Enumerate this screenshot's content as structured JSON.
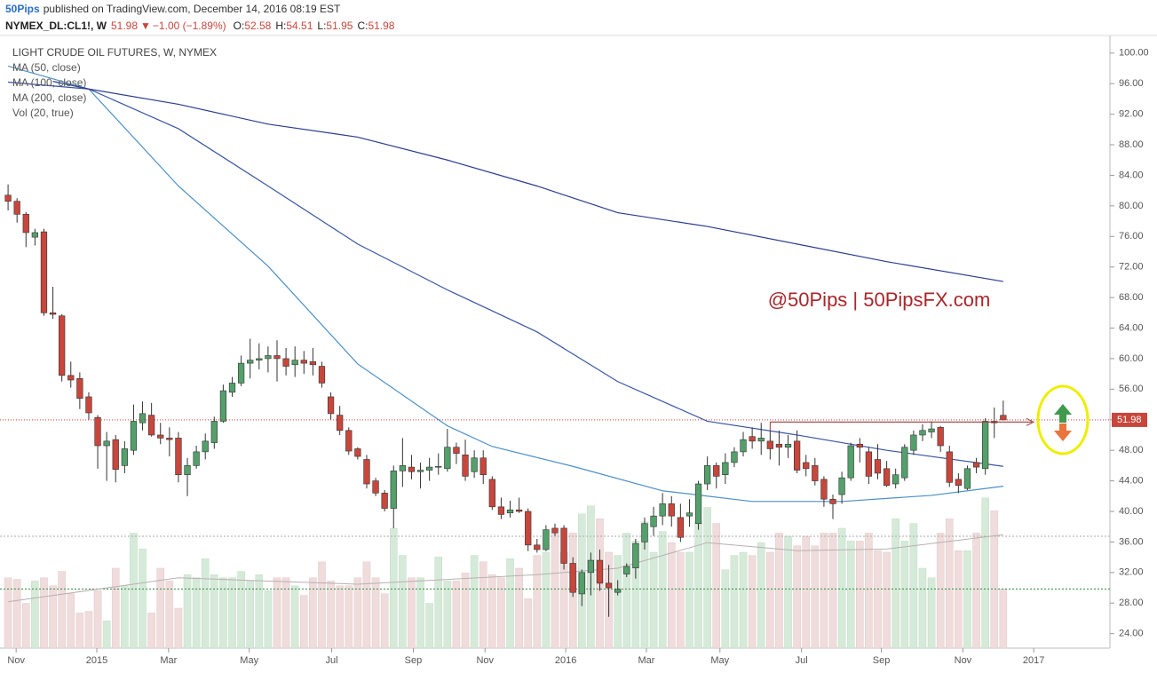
{
  "header": {
    "author": "50Pips",
    "published": "published on TradingView.com, December 14, 2016 08:19 EST",
    "symbol": "NYMEX_DL:CL1!, W",
    "last": "51.98",
    "change": "−1.00 (−1.89%)",
    "quote": [
      {
        "label": "O:",
        "value": "52.58"
      },
      {
        "label": "H:",
        "value": "54.51"
      },
      {
        "label": "L:",
        "value": "51.95"
      },
      {
        "label": "C:",
        "value": "51.98"
      }
    ]
  },
  "chart_data": {
    "type": "candlestick",
    "title": "LIGHT CRUDE OIL FUTURES, W, NYMEX",
    "watermark": "@50Pips | 50PipsFX.com",
    "indicator_labels": [
      "Vol (20, true)"
    ],
    "xlim": [
      -0.9,
      122.9
    ],
    "ylim": [
      22.1,
      102.3
    ],
    "vlim": [
      0,
      100
    ],
    "xticks": [
      {
        "value": 0.9,
        "label": "Nov"
      },
      {
        "value": 9.9,
        "label": "2015"
      },
      {
        "value": 17.9,
        "label": "Mar"
      },
      {
        "value": 26.9,
        "label": "May"
      },
      {
        "value": 36.1,
        "label": "Jul"
      },
      {
        "value": 45.2,
        "label": "Sep"
      },
      {
        "value": 53.2,
        "label": "Nov"
      },
      {
        "value": 62.2,
        "label": "2016"
      },
      {
        "value": 71.2,
        "label": "Mar"
      },
      {
        "value": 79.4,
        "label": "May"
      },
      {
        "value": 88.5,
        "label": "Jul"
      },
      {
        "value": 97.4,
        "label": "Sep"
      },
      {
        "value": 106.5,
        "label": "Nov"
      },
      {
        "value": 114.4,
        "label": "2017"
      }
    ],
    "yticks": [
      {
        "value": 24,
        "label": "24.00"
      },
      {
        "value": 28,
        "label": "28.00"
      },
      {
        "value": 32,
        "label": "32.00"
      },
      {
        "value": 36,
        "label": "36.00"
      },
      {
        "value": 40,
        "label": "40.00"
      },
      {
        "value": 44,
        "label": "44.00"
      },
      {
        "value": 48,
        "label": "48.00"
      },
      {
        "value": 52,
        "label": "52.00"
      },
      {
        "value": 56,
        "label": "56.00"
      },
      {
        "value": 60,
        "label": "60.00"
      },
      {
        "value": 64,
        "label": "64.00"
      },
      {
        "value": 68,
        "label": "68.00"
      },
      {
        "value": 72,
        "label": "72.00"
      },
      {
        "value": 76,
        "label": "76.00"
      },
      {
        "value": 80,
        "label": "80.00"
      },
      {
        "value": 84,
        "label": "84.00"
      },
      {
        "value": 88,
        "label": "88.00"
      },
      {
        "value": 92,
        "label": "92.00"
      },
      {
        "value": 96,
        "label": "96.00"
      },
      {
        "value": 100,
        "label": "100.00"
      }
    ],
    "up_color": "#53a06b",
    "down_color": "#c8463c",
    "vol_up_color": "#d6ead9",
    "vol_down_color": "#f0dcdc",
    "last_price": 51.98,
    "resistance_level": 51.7,
    "volume_levels": [
      37,
      70
    ],
    "ohlc": [
      [
        81.4,
        82.8,
        79.4,
        80.6
      ],
      [
        80.6,
        81.0,
        77.8,
        78.9
      ],
      [
        78.9,
        79.2,
        74.6,
        76.5
      ],
      [
        75.9,
        77.0,
        74.8,
        76.5
      ],
      [
        76.6,
        77.0,
        65.6,
        66.0
      ],
      [
        66.0,
        69.4,
        65.2,
        65.8
      ],
      [
        65.6,
        65.8,
        57.0,
        57.8
      ],
      [
        57.8,
        59.6,
        56.2,
        57.2
      ],
      [
        57.4,
        58.2,
        53.4,
        54.8
      ],
      [
        55.0,
        55.6,
        52.0,
        52.9
      ],
      [
        52.3,
        52.6,
        45.6,
        48.6
      ],
      [
        48.6,
        50.4,
        44.0,
        49.2
      ],
      [
        49.4,
        50.0,
        43.8,
        45.5
      ],
      [
        46.0,
        49.2,
        45.0,
        48.2
      ],
      [
        48.0,
        54.0,
        47.4,
        51.8
      ],
      [
        51.6,
        54.4,
        50.6,
        52.8
      ],
      [
        52.6,
        54.2,
        49.8,
        50.0
      ],
      [
        50.0,
        51.6,
        48.8,
        49.6
      ],
      [
        49.6,
        51.0,
        47.2,
        49.4
      ],
      [
        49.6,
        50.4,
        43.8,
        44.8
      ],
      [
        44.8,
        47.0,
        42.0,
        46.0
      ],
      [
        46.0,
        48.6,
        45.6,
        47.8
      ],
      [
        47.8,
        50.2,
        46.8,
        49.2
      ],
      [
        49.0,
        52.4,
        48.2,
        51.8
      ],
      [
        51.8,
        56.6,
        51.6,
        55.8
      ],
      [
        55.6,
        57.6,
        55.0,
        56.8
      ],
      [
        56.8,
        60.4,
        56.4,
        59.4
      ],
      [
        59.4,
        62.6,
        57.4,
        59.8
      ],
      [
        59.8,
        62.0,
        58.6,
        60.0
      ],
      [
        60.0,
        61.6,
        58.2,
        60.4
      ],
      [
        60.4,
        62.4,
        57.0,
        60.0
      ],
      [
        60.0,
        61.4,
        57.8,
        59.0
      ],
      [
        59.2,
        61.6,
        57.6,
        59.8
      ],
      [
        59.8,
        61.0,
        58.0,
        59.4
      ],
      [
        59.6,
        61.4,
        57.8,
        59.2
      ],
      [
        59.0,
        59.6,
        56.2,
        56.8
      ],
      [
        55.0,
        55.6,
        52.0,
        52.8
      ],
      [
        52.6,
        53.8,
        50.0,
        50.6
      ],
      [
        50.6,
        51.0,
        47.4,
        47.9
      ],
      [
        48.2,
        48.4,
        46.8,
        47.2
      ],
      [
        46.8,
        47.4,
        43.0,
        43.6
      ],
      [
        44.0,
        44.4,
        42.0,
        42.4
      ],
      [
        42.4,
        42.8,
        40.0,
        40.4
      ],
      [
        40.4,
        46.0,
        37.8,
        45.3
      ],
      [
        45.3,
        49.6,
        43.2,
        46.0
      ],
      [
        45.8,
        47.4,
        44.2,
        45.2
      ],
      [
        45.2,
        46.4,
        43.0,
        45.4
      ],
      [
        45.4,
        47.0,
        44.0,
        45.8
      ],
      [
        45.8,
        47.6,
        44.8,
        45.9
      ],
      [
        45.6,
        50.8,
        45.2,
        48.4
      ],
      [
        48.4,
        49.0,
        46.2,
        47.6
      ],
      [
        47.4,
        49.4,
        44.0,
        44.6
      ],
      [
        45.2,
        48.0,
        44.4,
        47.0
      ],
      [
        47.0,
        48.0,
        43.6,
        44.8
      ],
      [
        44.2,
        44.6,
        40.2,
        40.6
      ],
      [
        40.6,
        41.8,
        39.0,
        39.6
      ],
      [
        39.8,
        41.4,
        39.2,
        40.2
      ],
      [
        40.2,
        41.8,
        39.8,
        40.0
      ],
      [
        40.0,
        40.4,
        34.8,
        35.6
      ],
      [
        35.6,
        36.4,
        34.6,
        35.0
      ],
      [
        35.0,
        38.2,
        34.8,
        37.6
      ],
      [
        37.8,
        38.4,
        36.8,
        37.2
      ],
      [
        37.8,
        38.2,
        32.4,
        33.2
      ],
      [
        33.2,
        34.0,
        28.8,
        29.4
      ],
      [
        29.2,
        32.4,
        27.6,
        32.0
      ],
      [
        32.0,
        34.6,
        29.0,
        33.6
      ],
      [
        33.6,
        35.0,
        29.6,
        30.6
      ],
      [
        30.6,
        33.0,
        26.2,
        30.0
      ],
      [
        29.4,
        31.0,
        29.0,
        29.8
      ],
      [
        31.8,
        33.2,
        31.4,
        32.8
      ],
      [
        32.6,
        36.4,
        31.2,
        35.8
      ],
      [
        36.0,
        39.2,
        35.0,
        38.4
      ],
      [
        38.0,
        40.6,
        36.8,
        39.4
      ],
      [
        39.4,
        42.4,
        38.2,
        41.0
      ],
      [
        41.0,
        42.0,
        38.0,
        39.4
      ],
      [
        39.2,
        41.0,
        36.0,
        36.6
      ],
      [
        39.4,
        41.6,
        38.0,
        39.8
      ],
      [
        38.4,
        44.0,
        37.6,
        43.6
      ],
      [
        43.6,
        47.2,
        42.8,
        46.0
      ],
      [
        46.0,
        46.4,
        43.0,
        44.6
      ],
      [
        44.8,
        47.6,
        43.6,
        46.4
      ],
      [
        46.4,
        48.4,
        45.8,
        47.8
      ],
      [
        47.8,
        50.4,
        47.2,
        49.4
      ],
      [
        49.8,
        51.0,
        48.2,
        49.2
      ],
      [
        49.2,
        51.6,
        47.4,
        49.6
      ],
      [
        49.2,
        50.6,
        46.8,
        48.2
      ],
      [
        48.8,
        50.6,
        46.0,
        48.4
      ],
      [
        48.4,
        50.0,
        47.0,
        48.8
      ],
      [
        49.2,
        50.6,
        45.0,
        45.4
      ],
      [
        46.4,
        47.4,
        44.6,
        45.6
      ],
      [
        46.0,
        47.0,
        43.4,
        44.0
      ],
      [
        44.2,
        44.6,
        40.6,
        41.6
      ],
      [
        41.6,
        42.2,
        39.0,
        41.0
      ],
      [
        42.2,
        45.2,
        41.0,
        44.4
      ],
      [
        44.4,
        49.0,
        44.0,
        48.6
      ],
      [
        48.8,
        49.6,
        46.4,
        48.4
      ],
      [
        47.8,
        48.4,
        43.6,
        44.6
      ],
      [
        46.8,
        48.8,
        44.2,
        45.0
      ],
      [
        45.6,
        46.6,
        43.2,
        43.4
      ],
      [
        43.6,
        45.6,
        43.0,
        44.8
      ],
      [
        44.4,
        48.8,
        44.0,
        48.4
      ],
      [
        48.0,
        50.6,
        47.4,
        50.0
      ],
      [
        50.0,
        51.4,
        49.2,
        50.6
      ],
      [
        50.4,
        51.8,
        49.6,
        50.8
      ],
      [
        51.0,
        51.2,
        47.8,
        48.6
      ],
      [
        47.8,
        48.6,
        43.2,
        43.8
      ],
      [
        44.2,
        45.0,
        42.4,
        43.4
      ],
      [
        43.0,
        46.0,
        42.8,
        45.6
      ],
      [
        46.4,
        47.0,
        45.0,
        45.8
      ],
      [
        45.6,
        52.2,
        44.8,
        51.8
      ],
      [
        51.8,
        53.6,
        49.6,
        51.6
      ],
      [
        52.58,
        54.51,
        51.95,
        51.98
      ]
    ],
    "volume": [
      44,
      43,
      28,
      42,
      44,
      39,
      48,
      34,
      22,
      23,
      36,
      17,
      50,
      39,
      72,
      62,
      22,
      50,
      42,
      25,
      46,
      44,
      56,
      46,
      44,
      44,
      48,
      42,
      46,
      36,
      44,
      44,
      39,
      33,
      44,
      54,
      42,
      39,
      39,
      44,
      54,
      44,
      34,
      75,
      58,
      44,
      44,
      28,
      57,
      42,
      42,
      47,
      58,
      54,
      46,
      44,
      56,
      50,
      31,
      58,
      60,
      72,
      60,
      72,
      84,
      89,
      81,
      60,
      58,
      72,
      67,
      79,
      60,
      73,
      66,
      60,
      60,
      79,
      88,
      78,
      49,
      58,
      60,
      58,
      66,
      60,
      72,
      70,
      64,
      70,
      64,
      72,
      72,
      75,
      67,
      67,
      72,
      61,
      60,
      81,
      67,
      78,
      50,
      44,
      72,
      81,
      61,
      61,
      72,
      94,
      86,
      37
    ],
    "series": [
      {
        "name": "MA (50, close)",
        "color": "#4a8fc8",
        "x": [
          0,
          9,
          19,
          29,
          39,
          49,
          54,
          63,
          73,
          83,
          93,
          103,
          111
        ],
        "values": [
          98.3,
          95.3,
          82.6,
          72.1,
          59.3,
          51.2,
          48.5,
          45.9,
          42.7,
          41.3,
          41.3,
          42.1,
          43.3
        ]
      },
      {
        "name": "MA (100, close)",
        "color": "#3955a3",
        "x": [
          0,
          9,
          19,
          29,
          39,
          49,
          59,
          68,
          78,
          88,
          98,
          111
        ],
        "values": [
          96.2,
          95.3,
          90.1,
          82.6,
          75.0,
          69.0,
          63.5,
          57.0,
          51.8,
          50.0,
          48.0,
          45.9
        ]
      },
      {
        "name": "MA (200, close)",
        "color": "#2b3c8e",
        "x": [
          5,
          9,
          19,
          29,
          39,
          49,
          59,
          68,
          78,
          88,
          98,
          111
        ],
        "values": [
          96.3,
          95.3,
          93.3,
          90.7,
          89.0,
          86.0,
          82.6,
          79.1,
          77.3,
          75.0,
          72.7,
          70.1
        ]
      }
    ],
    "volume_ma": {
      "x": [
        0,
        19,
        39,
        59,
        68,
        78,
        88,
        98,
        111
      ],
      "values": [
        29,
        44,
        40,
        46,
        50,
        66,
        61,
        62,
        71
      ],
      "color": "#b8b0b0"
    }
  }
}
